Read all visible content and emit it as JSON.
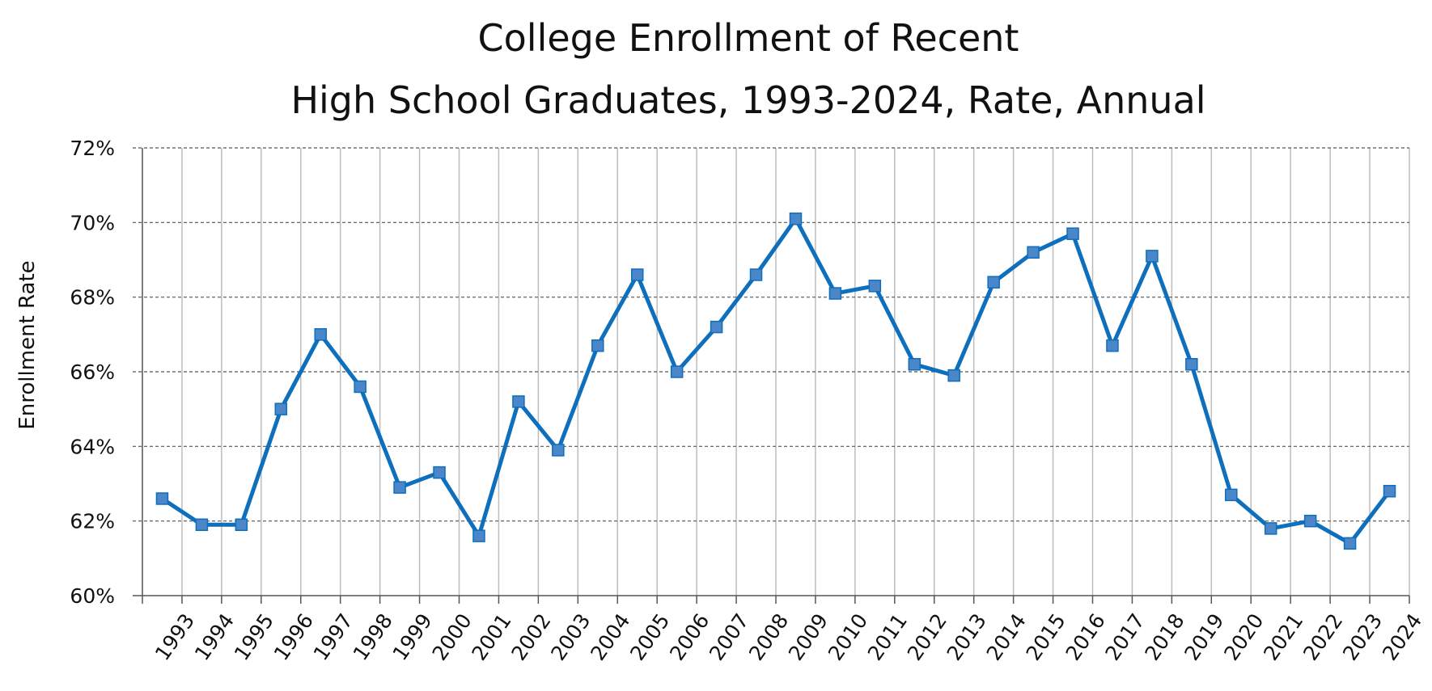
{
  "chart_data": {
    "type": "line",
    "title_lines": [
      "College Enrollment of Recent",
      "High School Graduates, 1993-2024, Rate, Annual"
    ],
    "xlabel": "",
    "ylabel": "Enrollment Rate",
    "ylim": [
      60,
      72
    ],
    "y_ticks": [
      60,
      62,
      64,
      66,
      68,
      70,
      72
    ],
    "y_tick_suffix": "%",
    "grid": true,
    "legend": "none",
    "categories": [
      "1993",
      "1994",
      "1995",
      "1996",
      "1997",
      "1998",
      "1999",
      "2000",
      "2001",
      "2002",
      "2003",
      "2004",
      "2005",
      "2006",
      "2007",
      "2008",
      "2009",
      "2010",
      "2011",
      "2012",
      "2013",
      "2014",
      "2015",
      "2016",
      "2017",
      "2018",
      "2019",
      "2020",
      "2021",
      "2022",
      "2023",
      "2024"
    ],
    "series": [
      {
        "name": "Enrollment Rate",
        "color": "#0e6fbd",
        "marker_color": "#4a86c8",
        "values": [
          62.6,
          61.9,
          61.9,
          65.0,
          67.0,
          65.6,
          62.9,
          63.3,
          61.6,
          65.2,
          63.9,
          66.7,
          68.6,
          66.0,
          67.2,
          68.6,
          70.1,
          68.1,
          68.3,
          66.2,
          65.9,
          68.4,
          69.2,
          69.7,
          66.7,
          69.1,
          66.2,
          62.7,
          61.8,
          62.0,
          61.4,
          62.8
        ]
      }
    ]
  }
}
